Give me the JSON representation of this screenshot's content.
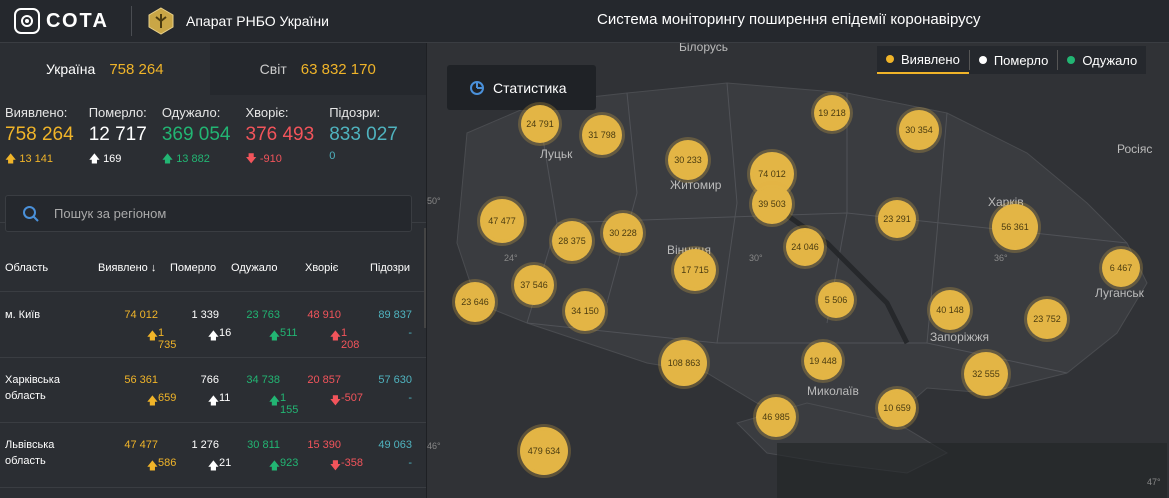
{
  "header": {
    "logo_text": "СОТА",
    "org_name": "Апарат РНБО України",
    "system_title": "Система моніторингу поширення епідемії коронавірусу"
  },
  "tabs": [
    {
      "label": "Україна",
      "value": "758 264"
    },
    {
      "label": "Світ",
      "value": "63 832 170"
    }
  ],
  "stats": [
    {
      "label": "Виявлено:",
      "value": "758 264",
      "delta": "13 141",
      "arrow": "up",
      "color": "#f0b429"
    },
    {
      "label": "Померло:",
      "value": "12 717",
      "delta": "169",
      "arrow": "up",
      "color": "#ffffff"
    },
    {
      "label": "Одужало:",
      "value": "369 054",
      "delta": "13 882",
      "arrow": "up",
      "color": "#22b573"
    },
    {
      "label": "Хворіє:",
      "value": "376 493",
      "delta": "-910",
      "arrow": "down",
      "color": "#f2545b"
    },
    {
      "label": "Підозри:",
      "value": "833 027",
      "delta": "0",
      "arrow": "none",
      "color": "#4fb3bf"
    }
  ],
  "search": {
    "placeholder": "Пошук за регіоном"
  },
  "table": {
    "headers": [
      "Область",
      "Виявлено ↓",
      "Померло",
      "Одужало",
      "Хворіє",
      "Підозри"
    ],
    "rows": [
      {
        "region": "м. Київ",
        "region2": "",
        "detected": "74 012",
        "detected_d": "1 735",
        "died": "1 339",
        "died_d": "16",
        "recovered": "23 763",
        "recovered_d": "511",
        "sick": "48 910",
        "sick_d": "1 208",
        "sick_arrow": "up",
        "suspect": "89 837",
        "suspect_d": "-"
      },
      {
        "region": "Харківська",
        "region2": "область",
        "detected": "56 361",
        "detected_d": "659",
        "died": "766",
        "died_d": "11",
        "recovered": "34 738",
        "recovered_d": "1 155",
        "sick": "20 857",
        "sick_d": "-507",
        "sick_arrow": "down",
        "suspect": "57 630",
        "suspect_d": "-"
      },
      {
        "region": "Львівська",
        "region2": "область",
        "detected": "47 477",
        "detected_d": "586",
        "died": "1 276",
        "died_d": "21",
        "recovered": "30 811",
        "recovered_d": "923",
        "sick": "15 390",
        "sick_d": "-358",
        "sick_arrow": "down",
        "suspect": "49 063",
        "suspect_d": "-"
      }
    ]
  },
  "map": {
    "stat_button": "Статистика",
    "legend": [
      {
        "label": "Виявлено",
        "color": "#f0b429",
        "active": true
      },
      {
        "label": "Померло",
        "color": "#ffffff",
        "active": false
      },
      {
        "label": "Одужало",
        "color": "#22b573",
        "active": false
      }
    ],
    "place_labels": [
      "Білорусь",
      "Луцьк",
      "Житомир",
      "Вінниця",
      "Харків",
      "Луганськ",
      "Запоріжжя",
      "Миколаїв",
      "Росіяс"
    ],
    "coord_labels": [
      "50°",
      "24°",
      "30°",
      "36°",
      "46°",
      "47°"
    ],
    "bubbles": [
      "24 791",
      "31 798",
      "30 233",
      "19 218",
      "30 354",
      "74 012",
      "39 503",
      "47 477",
      "28 375",
      "30 228",
      "23 291",
      "56 361",
      "24 046",
      "17 715",
      "37 546",
      "23 646",
      "34 150",
      "5 506",
      "6 467",
      "40 148",
      "23 752",
      "108 863",
      "19 448",
      "32 555",
      "46 985",
      "10 659",
      "479 634"
    ]
  }
}
